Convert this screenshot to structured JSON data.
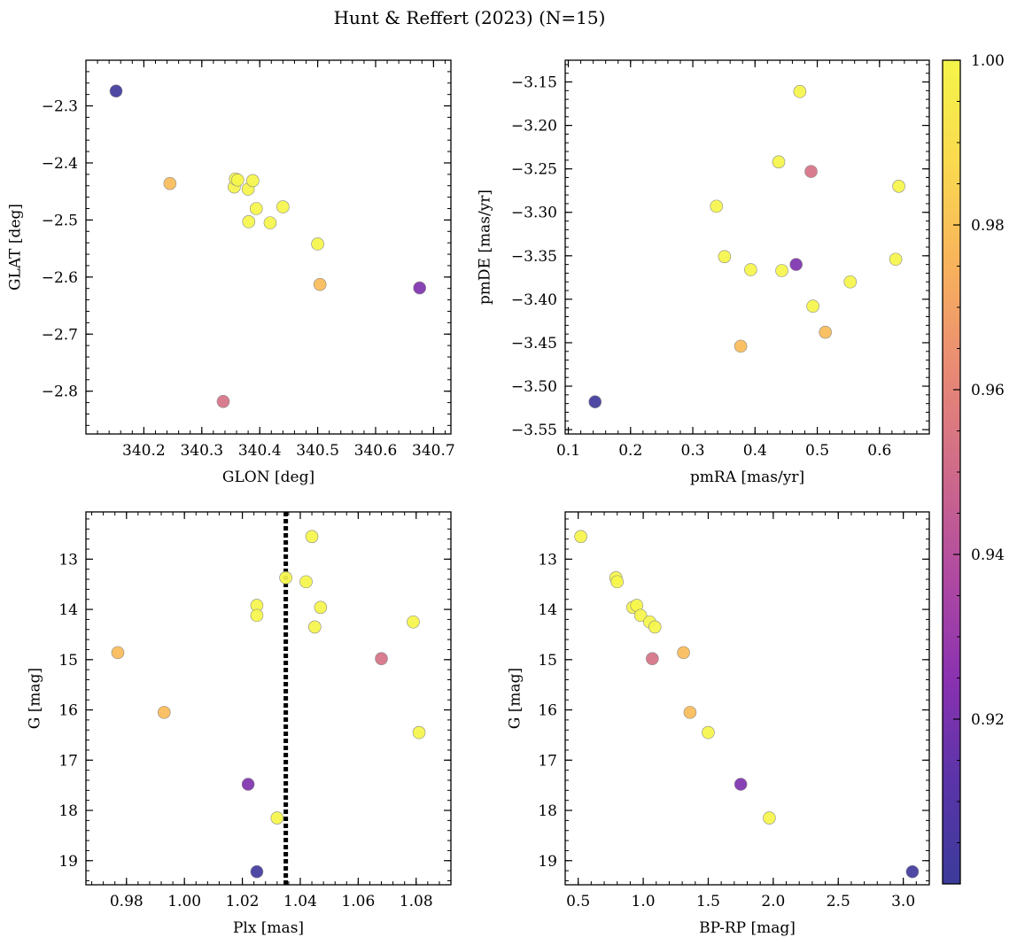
{
  "figure_title": "Hunt & Reffert (2023) (N=15)",
  "colormap": {
    "name": "plasma",
    "range": [
      0.9,
      1.0
    ],
    "stops": [
      "#3b3b9a",
      "#5a34a8",
      "#8a32b0",
      "#b04aa1",
      "#cf6a8a",
      "#e98a74",
      "#f8b25c",
      "#fad94f",
      "#f5f54a"
    ],
    "tick_labels": [
      "0.92",
      "0.94",
      "0.96",
      "0.98",
      "1.00"
    ],
    "tick_values": [
      0.92,
      0.94,
      0.96,
      0.98,
      1.0
    ]
  },
  "chart_data": [
    {
      "type": "scatter",
      "title": "",
      "xlabel": "GLON [deg]",
      "ylabel": "GLAT [deg]",
      "xlim": [
        340.1,
        340.73
      ],
      "ylim": [
        -2.875,
        -2.22
      ],
      "x_ticks": [
        "340.2",
        "340.3",
        "340.4",
        "340.5",
        "340.6",
        "340.7"
      ],
      "y_ticks": [
        "−2.3",
        "−2.4",
        "−2.5",
        "−2.6",
        "−2.7",
        "−2.8"
      ],
      "y_inverted": false,
      "points": [
        {
          "x": 340.152,
          "y": -2.274,
          "c": 0.902
        },
        {
          "x": 340.245,
          "y": -2.436,
          "c": 0.978
        },
        {
          "x": 340.356,
          "y": -2.442,
          "c": 1.0
        },
        {
          "x": 340.358,
          "y": -2.428,
          "c": 1.0
        },
        {
          "x": 340.362,
          "y": -2.43,
          "c": 1.0
        },
        {
          "x": 340.38,
          "y": -2.446,
          "c": 1.0
        },
        {
          "x": 340.388,
          "y": -2.431,
          "c": 1.0
        },
        {
          "x": 340.394,
          "y": -2.48,
          "c": 1.0
        },
        {
          "x": 340.381,
          "y": -2.503,
          "c": 1.0
        },
        {
          "x": 340.418,
          "y": -2.505,
          "c": 1.0
        },
        {
          "x": 340.44,
          "y": -2.477,
          "c": 1.0
        },
        {
          "x": 340.5,
          "y": -2.542,
          "c": 1.0
        },
        {
          "x": 340.504,
          "y": -2.613,
          "c": 0.978
        },
        {
          "x": 340.337,
          "y": -2.818,
          "c": 0.953
        },
        {
          "x": 340.676,
          "y": -2.619,
          "c": 0.922
        }
      ]
    },
    {
      "type": "scatter",
      "title": "",
      "xlabel": "pmRA [mas/yr]",
      "ylabel": "pmDE [mas/yr]",
      "xlim": [
        0.095,
        0.68
      ],
      "ylim": [
        -3.555,
        -3.125
      ],
      "x_ticks": [
        "0.1",
        "0.2",
        "0.3",
        "0.4",
        "0.5",
        "0.6"
      ],
      "y_ticks": [
        "−3.15",
        "−3.20",
        "−3.25",
        "−3.30",
        "−3.35",
        "−3.40",
        "−3.45",
        "−3.50",
        "−3.55"
      ],
      "y_inverted": false,
      "points": [
        {
          "x": 0.472,
          "y": -3.161,
          "c": 1.0
        },
        {
          "x": 0.438,
          "y": -3.242,
          "c": 1.0
        },
        {
          "x": 0.49,
          "y": -3.253,
          "c": 0.953
        },
        {
          "x": 0.631,
          "y": -3.27,
          "c": 1.0
        },
        {
          "x": 0.338,
          "y": -3.293,
          "c": 1.0
        },
        {
          "x": 0.351,
          "y": -3.351,
          "c": 1.0
        },
        {
          "x": 0.393,
          "y": -3.366,
          "c": 1.0
        },
        {
          "x": 0.443,
          "y": -3.367,
          "c": 1.0
        },
        {
          "x": 0.466,
          "y": -3.36,
          "c": 0.922
        },
        {
          "x": 0.626,
          "y": -3.354,
          "c": 1.0
        },
        {
          "x": 0.553,
          "y": -3.38,
          "c": 1.0
        },
        {
          "x": 0.493,
          "y": -3.408,
          "c": 1.0
        },
        {
          "x": 0.513,
          "y": -3.438,
          "c": 0.978
        },
        {
          "x": 0.377,
          "y": -3.454,
          "c": 0.978
        },
        {
          "x": 0.143,
          "y": -3.518,
          "c": 0.902
        }
      ]
    },
    {
      "type": "scatter",
      "title": "",
      "xlabel": "Plx [mas]",
      "ylabel": "G [mag]",
      "xlim": [
        0.966,
        1.092
      ],
      "ylim": [
        19.48,
        12.06
      ],
      "x_ticks": [
        "0.98",
        "1.00",
        "1.02",
        "1.04",
        "1.06",
        "1.08"
      ],
      "y_ticks": [
        "13",
        "14",
        "15",
        "16",
        "17",
        "18",
        "19"
      ],
      "y_inverted": true,
      "vline": {
        "x": 1.035,
        "style": "dotted",
        "color": "#000000"
      },
      "points": [
        {
          "x": 1.044,
          "y": 12.55,
          "c": 1.0
        },
        {
          "x": 1.035,
          "y": 13.37,
          "c": 1.0
        },
        {
          "x": 1.042,
          "y": 13.45,
          "c": 1.0
        },
        {
          "x": 1.025,
          "y": 13.92,
          "c": 1.0
        },
        {
          "x": 1.047,
          "y": 13.96,
          "c": 1.0
        },
        {
          "x": 1.025,
          "y": 14.12,
          "c": 1.0
        },
        {
          "x": 1.045,
          "y": 14.35,
          "c": 1.0
        },
        {
          "x": 1.079,
          "y": 14.25,
          "c": 1.0
        },
        {
          "x": 0.977,
          "y": 14.86,
          "c": 0.978
        },
        {
          "x": 1.068,
          "y": 14.98,
          "c": 0.953
        },
        {
          "x": 0.993,
          "y": 16.05,
          "c": 0.978
        },
        {
          "x": 1.081,
          "y": 16.45,
          "c": 1.0
        },
        {
          "x": 1.022,
          "y": 17.48,
          "c": 0.922
        },
        {
          "x": 1.032,
          "y": 18.15,
          "c": 1.0
        },
        {
          "x": 1.025,
          "y": 19.22,
          "c": 0.902
        }
      ]
    },
    {
      "type": "scatter",
      "title": "",
      "xlabel": "BP-RP [mag]",
      "ylabel": "G [mag]",
      "xlim": [
        0.4,
        3.2
      ],
      "ylim": [
        19.48,
        12.06
      ],
      "x_ticks": [
        "0.5",
        "1.0",
        "1.5",
        "2.0",
        "2.5",
        "3.0"
      ],
      "y_ticks": [
        "13",
        "14",
        "15",
        "16",
        "17",
        "18",
        "19"
      ],
      "y_inverted": true,
      "points": [
        {
          "x": 0.52,
          "y": 12.55,
          "c": 1.0
        },
        {
          "x": 0.79,
          "y": 13.37,
          "c": 1.0
        },
        {
          "x": 0.8,
          "y": 13.45,
          "c": 1.0
        },
        {
          "x": 0.92,
          "y": 13.96,
          "c": 1.0
        },
        {
          "x": 0.95,
          "y": 13.92,
          "c": 1.0
        },
        {
          "x": 0.98,
          "y": 14.12,
          "c": 1.0
        },
        {
          "x": 1.05,
          "y": 14.25,
          "c": 1.0
        },
        {
          "x": 1.09,
          "y": 14.35,
          "c": 1.0
        },
        {
          "x": 1.07,
          "y": 14.98,
          "c": 0.953
        },
        {
          "x": 1.31,
          "y": 14.86,
          "c": 0.978
        },
        {
          "x": 1.36,
          "y": 16.05,
          "c": 0.978
        },
        {
          "x": 1.5,
          "y": 16.45,
          "c": 1.0
        },
        {
          "x": 1.75,
          "y": 17.48,
          "c": 0.922
        },
        {
          "x": 1.97,
          "y": 18.15,
          "c": 1.0
        },
        {
          "x": 3.07,
          "y": 19.22,
          "c": 0.902
        }
      ]
    }
  ]
}
